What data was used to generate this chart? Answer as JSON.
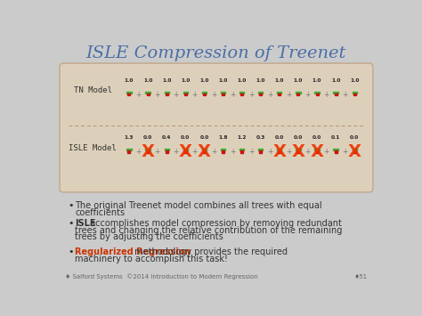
{
  "title": "ISLE Compression of Treenet",
  "title_color": "#4a6fa5",
  "bg_color": "#ddd0bb",
  "slide_bg": "#cbcbcb",
  "tn_label": "TN Model",
  "isle_label": "ISLE Model",
  "tn_coeffs": [
    "1.0",
    "1.0",
    "1.0",
    "1.0",
    "1.0",
    "1.0",
    "1.0",
    "1.0",
    "1.0",
    "1.0",
    "1.0",
    "1.0",
    "1.0"
  ],
  "isle_coeffs": [
    "1.3",
    "0.0",
    "0.4",
    "0.0",
    "0.0",
    "1.8",
    "1.2",
    "0.3",
    "0.0",
    "0.0",
    "0.0",
    "0.1",
    "0.0"
  ],
  "isle_removed": [
    false,
    true,
    false,
    true,
    true,
    false,
    false,
    false,
    true,
    true,
    true,
    false,
    true
  ],
  "n_trees": 13,
  "bullet1_text": "The original Treenet model combines all trees with equal",
  "bullet1_text2": "coefficients",
  "bullet2_bold": "ISLE",
  "bullet2_line1": " accomplishes model compression by removing redundant",
  "bullet2_line2": "trees and changing the relative contribution of the remaining",
  "bullet2_line3": "trees by adjusting the coefficients",
  "bullet3_bold": "Regularized Regression",
  "bullet3_line1": " methodology provides the required",
  "bullet3_line2": "machinery to accomplish this task!",
  "footer": "♦ Salford Systems  ©2014 Introduction to Modern Regression",
  "page_num": "♦51",
  "tree_green": "#44aa33",
  "tree_red": "#cc1111",
  "x_color": "#ee3300",
  "plus_color": "#777777",
  "coeff_color": "#222222",
  "bold_color": "#cc3300",
  "text_color": "#333333"
}
